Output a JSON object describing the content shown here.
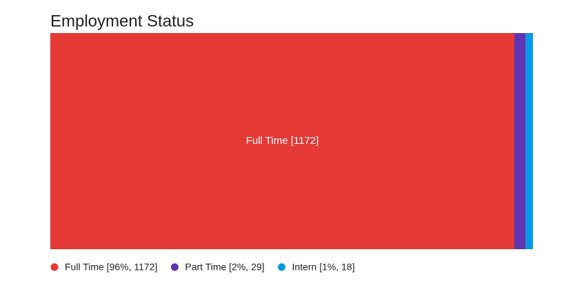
{
  "chart_data": {
    "type": "treemap",
    "title": "Employment Status",
    "categories": [
      "Full Time [96%, 1172]",
      "Part Time [2%, 29]",
      "Intern [1%, 18]"
    ],
    "values": [
      1172,
      29,
      18
    ],
    "value_labels": [
      "Full Time [1172]",
      null,
      null
    ],
    "colors": [
      "#e53935",
      "#5e35b1",
      "#039be5"
    ]
  }
}
